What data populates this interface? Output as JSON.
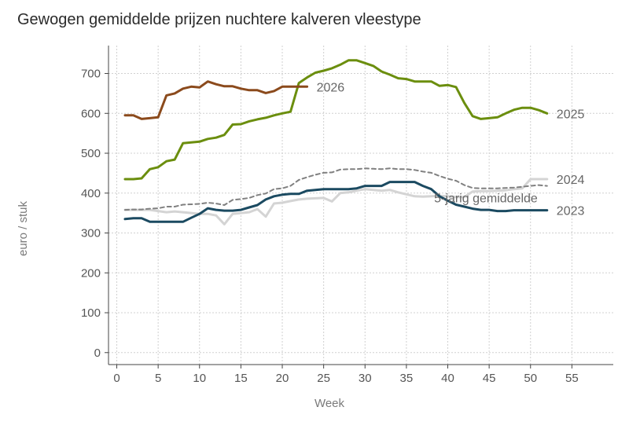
{
  "chart_data": {
    "type": "line",
    "title": "Gewogen gemiddelde prijzen nuchtere kalveren vleestype",
    "xlabel": "Week",
    "ylabel": "euro / stuk",
    "xlim": [
      -1,
      60
    ],
    "ylim": [
      -30,
      770
    ],
    "xticks": [
      0,
      5,
      10,
      15,
      20,
      25,
      30,
      35,
      40,
      45,
      50,
      55
    ],
    "yticks": [
      0,
      100,
      200,
      300,
      400,
      500,
      600,
      700
    ],
    "grid": true,
    "series": [
      {
        "name": "2024",
        "color": "#d4d4d4",
        "dash": "solid",
        "x": [
          1,
          2,
          3,
          4,
          5,
          6,
          7,
          8,
          9,
          10,
          11,
          12,
          13,
          14,
          15,
          16,
          17,
          18,
          19,
          20,
          21,
          22,
          23,
          24,
          25,
          26,
          27,
          28,
          29,
          30,
          31,
          32,
          33,
          34,
          35,
          36,
          37,
          38,
          39,
          40,
          41,
          42,
          43,
          44,
          45,
          46,
          47,
          48,
          49,
          50,
          51,
          52
        ],
        "values": [
          358,
          358,
          358,
          358,
          355,
          352,
          354,
          352,
          350,
          348,
          348,
          344,
          322,
          348,
          350,
          352,
          360,
          341,
          374,
          376,
          380,
          384,
          386,
          387,
          388,
          379,
          400,
          402,
          406,
          410,
          408,
          406,
          408,
          402,
          397,
          392,
          391,
          392,
          393,
          392,
          390,
          390,
          404,
          405,
          405,
          406,
          407,
          410,
          412,
          435,
          435,
          435
        ]
      },
      {
        "name": "5-jarig gemiddelde",
        "color": "#808080",
        "dash": "dashed",
        "x": [
          1,
          2,
          3,
          4,
          5,
          6,
          7,
          8,
          9,
          10,
          11,
          12,
          13,
          14,
          15,
          16,
          17,
          18,
          19,
          20,
          21,
          22,
          23,
          24,
          25,
          26,
          27,
          28,
          29,
          30,
          31,
          32,
          33,
          34,
          35,
          36,
          37,
          38,
          39,
          40,
          41,
          42,
          43,
          44,
          45,
          46,
          47,
          48,
          49,
          50,
          51,
          52
        ],
        "values": [
          358,
          359,
          359,
          361,
          362,
          366,
          366,
          371,
          372,
          373,
          376,
          374,
          370,
          383,
          385,
          388,
          395,
          399,
          410,
          412,
          418,
          433,
          440,
          446,
          451,
          452,
          459,
          460,
          460,
          462,
          461,
          460,
          462,
          460,
          460,
          458,
          454,
          451,
          443,
          436,
          431,
          420,
          413,
          412,
          412,
          412,
          413,
          414,
          416,
          418,
          420,
          418
        ]
      },
      {
        "name": "2023",
        "color": "#1b4a61",
        "dash": "solid",
        "x": [
          1,
          2,
          3,
          4,
          5,
          6,
          7,
          8,
          9,
          10,
          11,
          12,
          13,
          14,
          15,
          16,
          17,
          18,
          19,
          20,
          21,
          22,
          23,
          24,
          25,
          26,
          27,
          28,
          29,
          30,
          31,
          32,
          33,
          34,
          35,
          36,
          37,
          38,
          39,
          40,
          41,
          42,
          43,
          44,
          45,
          46,
          47,
          48,
          49,
          50,
          51,
          52
        ],
        "values": [
          335,
          337,
          337,
          328,
          328,
          328,
          328,
          328,
          338,
          348,
          362,
          358,
          356,
          356,
          358,
          364,
          370,
          384,
          392,
          396,
          398,
          398,
          406,
          408,
          410,
          410,
          410,
          410,
          412,
          418,
          418,
          418,
          428,
          428,
          428,
          428,
          418,
          410,
          392,
          381,
          371,
          366,
          361,
          358,
          358,
          355,
          355,
          357,
          357,
          357,
          357,
          357
        ]
      },
      {
        "name": "2025",
        "color": "#6b8e0e",
        "dash": "solid",
        "x": [
          1,
          2,
          3,
          4,
          5,
          6,
          7,
          8,
          9,
          10,
          11,
          12,
          13,
          14,
          15,
          16,
          17,
          18,
          19,
          20,
          21,
          22,
          23,
          24,
          25,
          26,
          27,
          28,
          29,
          30,
          31,
          32,
          33,
          34,
          35,
          36,
          37,
          38,
          39,
          40,
          41,
          42,
          43,
          44,
          45,
          46,
          47,
          48,
          49,
          50,
          51,
          52
        ],
        "values": [
          435,
          435,
          437,
          460,
          465,
          480,
          484,
          525,
          527,
          529,
          536,
          539,
          546,
          572,
          573,
          580,
          585,
          589,
          595,
          600,
          604,
          676,
          690,
          702,
          707,
          713,
          722,
          733,
          733,
          726,
          719,
          705,
          697,
          688,
          686,
          680,
          680,
          680,
          669,
          671,
          666,
          626,
          593,
          586,
          588,
          590,
          600,
          609,
          614,
          614,
          608,
          600
        ]
      },
      {
        "name": "2026",
        "color": "#8b4a1c",
        "dash": "solid",
        "x": [
          1,
          2,
          3,
          4,
          5,
          6,
          7,
          8,
          9,
          10,
          11,
          12,
          13,
          14,
          15,
          16,
          17,
          18,
          19,
          20,
          21,
          22,
          23
        ],
        "values": [
          595,
          595,
          586,
          588,
          590,
          645,
          650,
          662,
          667,
          665,
          680,
          673,
          668,
          668,
          662,
          658,
          658,
          651,
          656,
          667,
          667,
          667,
          667
        ]
      }
    ]
  }
}
